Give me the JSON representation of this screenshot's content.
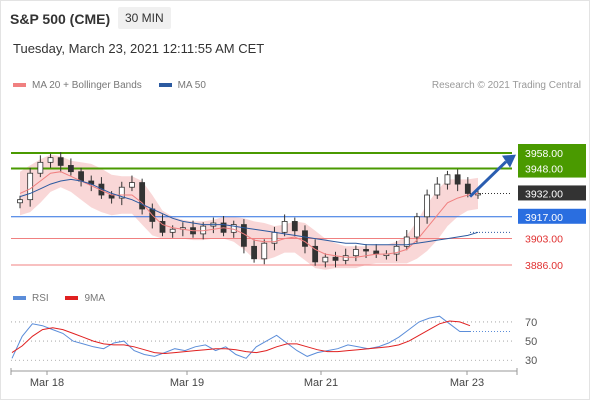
{
  "header": {
    "symbol_title": "S&P 500 (CME)",
    "interval": "30 MIN",
    "timestamp": "Tuesday, March 23, 2021 12:11:55 AM CET",
    "copyright": "Research © 2021 Trading Central"
  },
  "legend": {
    "main": [
      {
        "label": "MA 20 + Bollinger Bands",
        "color": "#f08080"
      },
      {
        "label": "MA 50",
        "color": "#2c5aa0"
      }
    ],
    "rsi": [
      {
        "label": "RSI",
        "color": "#5b8dd9"
      },
      {
        "label": "9MA",
        "color": "#e02020"
      }
    ]
  },
  "colors": {
    "up_candle": "#26a65b",
    "down_candle": "#c0392b",
    "bollinger": "#f8d0d0",
    "resistance": "#4a9a00",
    "pivot": "#2a6ee0",
    "support": "#f08080",
    "arrow": "#2a5db0"
  },
  "chart_data": [
    {
      "type": "candlestick",
      "title": "S&P 500 (CME)",
      "interval": "30 MIN",
      "x_tick_labels": [
        "Mar 18",
        "Mar 19",
        "Mar 21",
        "Mar 23"
      ],
      "y_range": [
        3875,
        3965
      ],
      "close_path": [
        3928,
        3945,
        3952,
        3955,
        3950,
        3946,
        3940,
        3938,
        3931,
        3929,
        3936,
        3939,
        3922,
        3914,
        3907,
        3909,
        3910,
        3906,
        3911,
        3913,
        3907,
        3912,
        3898,
        3890,
        3900,
        3907,
        3914,
        3908,
        3898,
        3888,
        3891,
        3889,
        3892,
        3896,
        3895,
        3893,
        3893,
        3898,
        3904,
        3917,
        3931,
        3938,
        3944,
        3938,
        3932,
        3932
      ],
      "ma20_path": [
        3932,
        3935,
        3940,
        3945,
        3946,
        3943,
        3940,
        3937,
        3934,
        3931,
        3931,
        3931,
        3926,
        3918,
        3912,
        3910,
        3909,
        3908,
        3908,
        3909,
        3910,
        3909,
        3906,
        3902,
        3901,
        3901,
        3903,
        3904,
        3901,
        3896,
        3893,
        3892,
        3891,
        3891,
        3892,
        3893,
        3893,
        3894,
        3896,
        3902,
        3910,
        3918,
        3926,
        3929,
        3931,
        3932
      ],
      "ma50_path": [
        3930,
        3932,
        3935,
        3938,
        3940,
        3941,
        3940,
        3938,
        3935,
        3932,
        3930,
        3928,
        3925,
        3922,
        3919,
        3916,
        3914,
        3913,
        3912,
        3912,
        3912,
        3911,
        3910,
        3909,
        3908,
        3907,
        3906,
        3905,
        3904,
        3903,
        3902,
        3901,
        3900,
        3900,
        3899,
        3899,
        3899,
        3899,
        3899,
        3900,
        3901,
        3902,
        3903,
        3904,
        3905,
        3907
      ],
      "band_width": [
        14,
        15,
        14,
        12,
        10,
        10,
        12,
        14,
        14,
        13,
        12,
        12,
        14,
        13,
        9,
        7,
        6,
        6,
        6,
        6,
        7,
        8,
        10,
        12,
        12,
        10,
        9,
        10,
        12,
        12,
        10,
        8,
        7,
        7,
        6,
        6,
        6,
        7,
        9,
        12,
        15,
        16,
        15,
        12,
        10,
        10
      ],
      "levels": {
        "resistance": [
          3958.0,
          3948.0
        ],
        "pivot": 3932.0,
        "support": [
          3917.0,
          3903.0,
          3886.0
        ],
        "labels": [
          "3958.00",
          "3948.00",
          "3932.00",
          "3917.00",
          "3903.00",
          "3886.00"
        ]
      }
    },
    {
      "type": "line",
      "name": "RSI",
      "y_tick_labels": [
        "70",
        "50",
        "30"
      ],
      "y_range": [
        20,
        80
      ],
      "rsi_path": [
        32,
        55,
        68,
        66,
        62,
        58,
        50,
        47,
        44,
        42,
        48,
        50,
        40,
        36,
        34,
        38,
        42,
        40,
        44,
        46,
        40,
        44,
        36,
        32,
        44,
        50,
        56,
        48,
        40,
        34,
        38,
        40,
        42,
        46,
        44,
        42,
        44,
        48,
        54,
        62,
        70,
        74,
        76,
        68,
        60,
        60
      ],
      "ma9_path": [
        38,
        45,
        55,
        62,
        64,
        62,
        58,
        54,
        50,
        47,
        46,
        46,
        44,
        41,
        38,
        37,
        38,
        39,
        40,
        41,
        42,
        42,
        41,
        39,
        38,
        40,
        44,
        47,
        47,
        44,
        41,
        39,
        39,
        40,
        41,
        42,
        43,
        44,
        46,
        50,
        56,
        62,
        68,
        71,
        70,
        66
      ]
    }
  ]
}
